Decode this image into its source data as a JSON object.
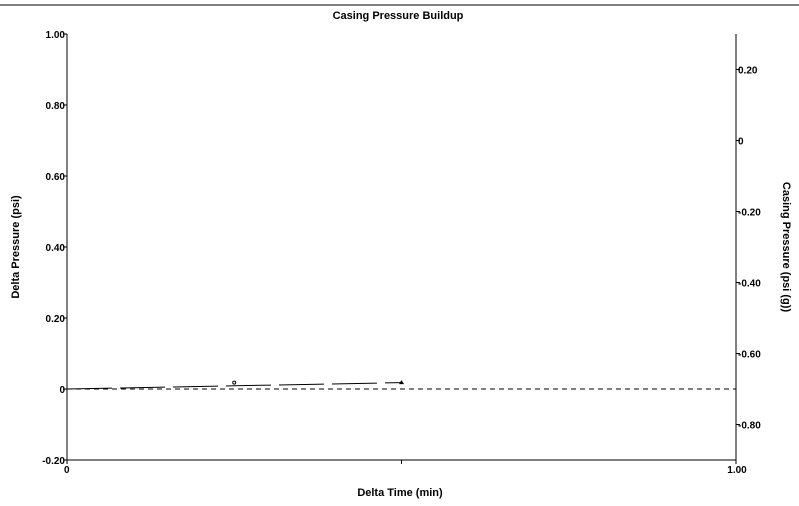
{
  "chart_data": {
    "type": "line",
    "title": "Casing Pressure Buildup",
    "xlabel": "Delta Time (min)",
    "ylabel": "Delta Pressure (psi)",
    "y2label": "Casing Pressure (psi (g))",
    "xlim": [
      0,
      1.0
    ],
    "ylim": [
      -0.2,
      1.0
    ],
    "y2lim": [
      -0.9,
      0.3
    ],
    "x_tick_labels": [
      "0",
      "1.00"
    ],
    "y_tick_labels": [
      "-0.20",
      "0",
      "0.20",
      "0.40",
      "0.60",
      "0.80",
      "1.00"
    ],
    "y2_tick_labels": [
      "-0.80",
      "-0.60",
      "-0.40",
      "-0.20",
      "0",
      "0.20"
    ],
    "grid": false,
    "legend": "none",
    "series": [
      {
        "axis": "left",
        "style": "long-dash",
        "color": "#000000",
        "x": [
          0,
          0.25,
          0.5
        ],
        "y": [
          0,
          0.009,
          0.018
        ],
        "markers": [
          {
            "x": 0.25,
            "y": 0.018,
            "shape": "circle"
          },
          {
            "x": 0.5,
            "y": 0.018,
            "shape": "triangle"
          }
        ]
      },
      {
        "axis": "left",
        "style": "short-dash",
        "color": "#000000",
        "x": [
          0,
          1.0
        ],
        "y": [
          0,
          0
        ]
      }
    ]
  }
}
